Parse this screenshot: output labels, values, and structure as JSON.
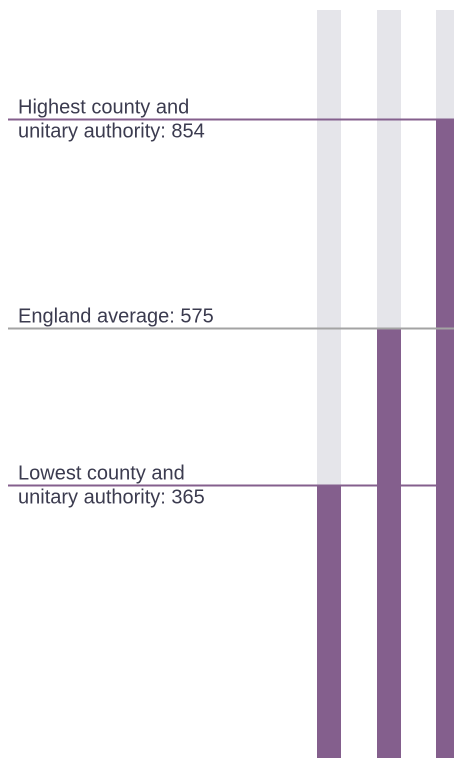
{
  "chart_data": {
    "type": "bar",
    "title": "",
    "xlabel": "",
    "ylabel": "",
    "ylim": [
      0,
      1000
    ],
    "colors": {
      "track": "#e5e5ea",
      "bar": "#845f8d",
      "extreme_line": "#845f8d",
      "average_line": "#a3a3a3",
      "text": "#3b3b4f"
    },
    "values": [
      365,
      575,
      854
    ],
    "reference_lines": [
      {
        "key": "highest",
        "value": 854,
        "lines": [
          "Highest county and",
          "unitary authority:  854"
        ],
        "style": "extreme"
      },
      {
        "key": "average",
        "value": 575,
        "lines": [
          "England average:  575"
        ],
        "style": "average"
      },
      {
        "key": "lowest",
        "value": 365,
        "lines": [
          "Lowest county and",
          "unitary authority:  365"
        ],
        "style": "extreme"
      }
    ]
  }
}
